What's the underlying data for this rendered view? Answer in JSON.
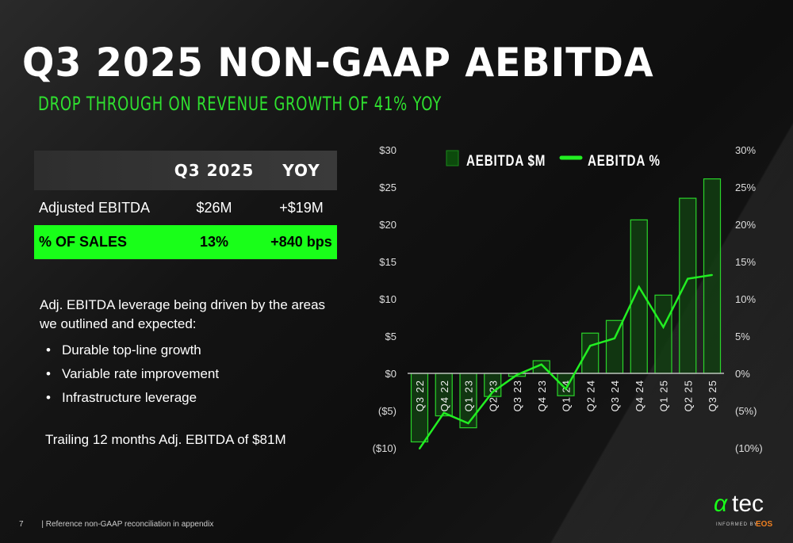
{
  "title": "Q3 2025 NON-GAAP AEBITDA",
  "subtitle": "DROP THROUGH ON REVENUE GROWTH OF 41% YOY",
  "table": {
    "headers": [
      "",
      "Q3 2025",
      "YOY"
    ],
    "rows": [
      [
        "Adjusted EBITDA",
        "$26M",
        "+$19M"
      ],
      [
        "% OF SALES",
        "13%",
        "+840 bps"
      ]
    ]
  },
  "body": {
    "intro": "Adj. EBITDA leverage being driven by the areas we outlined and expected:",
    "bullets": [
      "Durable top-line growth",
      "Variable rate improvement",
      "Infrastructure leverage"
    ],
    "trailing": "Trailing 12 months Adj. EBITDA of $81M"
  },
  "footer": {
    "page": "7",
    "note": "|  Reference non-GAAP reconciliation in appendix"
  },
  "logo": {
    "text": "αtec",
    "tagline": "INFORMED BY EOS"
  },
  "colors": {
    "accent": "#19ff19",
    "bar_fill": "#123d12",
    "bar_stroke": "#2ad42a",
    "line": "#22ee22"
  },
  "chart_data": {
    "type": "bar+line",
    "categories": [
      "Q3 22",
      "Q4 22",
      "Q1 23",
      "Q2 23",
      "Q3 23",
      "Q4 23",
      "Q1 24",
      "Q2 24",
      "Q3 24",
      "Q4 24",
      "Q1 25",
      "Q2 25",
      "Q3 25"
    ],
    "series": [
      {
        "name": "AEBITDA $M",
        "type": "bar",
        "axis": "left",
        "values": [
          -9.2,
          -5.7,
          -7.3,
          -3.1,
          -0.4,
          1.7,
          -3.0,
          5.4,
          7.1,
          20.6,
          10.5,
          23.5,
          26.1
        ]
      },
      {
        "name": "AEBITDA %",
        "type": "line",
        "axis": "right",
        "values": [
          -10.1,
          -5.3,
          -6.7,
          -2.5,
          -0.2,
          1.2,
          -2.1,
          3.7,
          4.7,
          11.6,
          6.2,
          12.7,
          13.2
        ]
      }
    ],
    "left_ticks": [
      "$30",
      "$25",
      "$20",
      "$15",
      "$10",
      "$5",
      "$0",
      "($5)",
      "($10)"
    ],
    "right_ticks": [
      "30%",
      "25%",
      "20%",
      "15%",
      "10%",
      "5%",
      "0%",
      "(5%)",
      "(10%)"
    ],
    "ylim_left": [
      -10,
      30
    ],
    "ylim_right": [
      -10,
      30
    ],
    "legend": "top",
    "grid": false
  }
}
